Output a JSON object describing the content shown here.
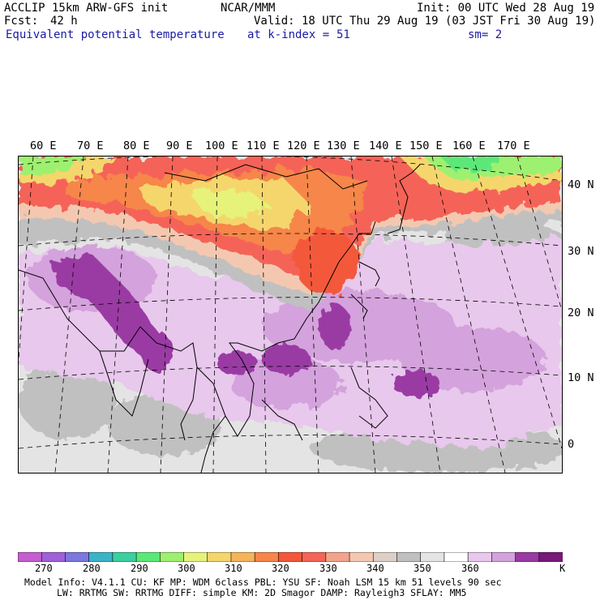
{
  "header": {
    "model": "ACCLIP 15km ARW-GFS init",
    "org": "NCAR/MMM",
    "init": "Init: 00 UTC Wed 28 Aug 19",
    "fcst_label": "Fcst:",
    "fcst_value": "42 h",
    "valid": "Valid: 18 UTC Thu 29 Aug 19 (03 JST Fri 30 Aug 19)",
    "field": "Equivalent potential temperature",
    "level_label": "at k-index =",
    "level_value": "51",
    "smooth": "sm= 2"
  },
  "map": {
    "lon_labels": [
      "60 E",
      "70 E",
      "80 E",
      "90 E",
      "100 E",
      "110 E",
      "120 E",
      "130 E",
      "140 E",
      "150 E",
      "160 E",
      "170 E"
    ],
    "lat_labels": [
      "40 N",
      "30 N",
      "20 N",
      "10 N",
      "0"
    ]
  },
  "colorbar": {
    "unit": "K",
    "labels": [
      "270",
      "280",
      "290",
      "300",
      "310",
      "320",
      "330",
      "340",
      "350",
      "360"
    ],
    "colors": [
      "#c65ecf",
      "#a060d8",
      "#7c78e0",
      "#3cb4c8",
      "#3ccfa0",
      "#5ce879",
      "#9ef070",
      "#e6f27a",
      "#f5d66c",
      "#f6b45a",
      "#f6864a",
      "#f4583a",
      "#f56458",
      "#f3a48c",
      "#f4c8b0",
      "#dcd0c8",
      "#c0c0c0",
      "#e4e4e4",
      "#ffffff",
      "#e8c8ec",
      "#d4a2dc",
      "#9a3aa4",
      "#781a78"
    ]
  },
  "info": {
    "line1": "Model Info: V4.1.1     CU: KF       MP: WDM 6class  PBL: YSU       SF: Noah LSM    15 km    51 levels   90 sec",
    "line2": "LW: RRTMG     SW: RRTMG   DIFF: simple KM: 2D Smagor DAMP: Rayleigh3  SFLAY: MM5"
  }
}
